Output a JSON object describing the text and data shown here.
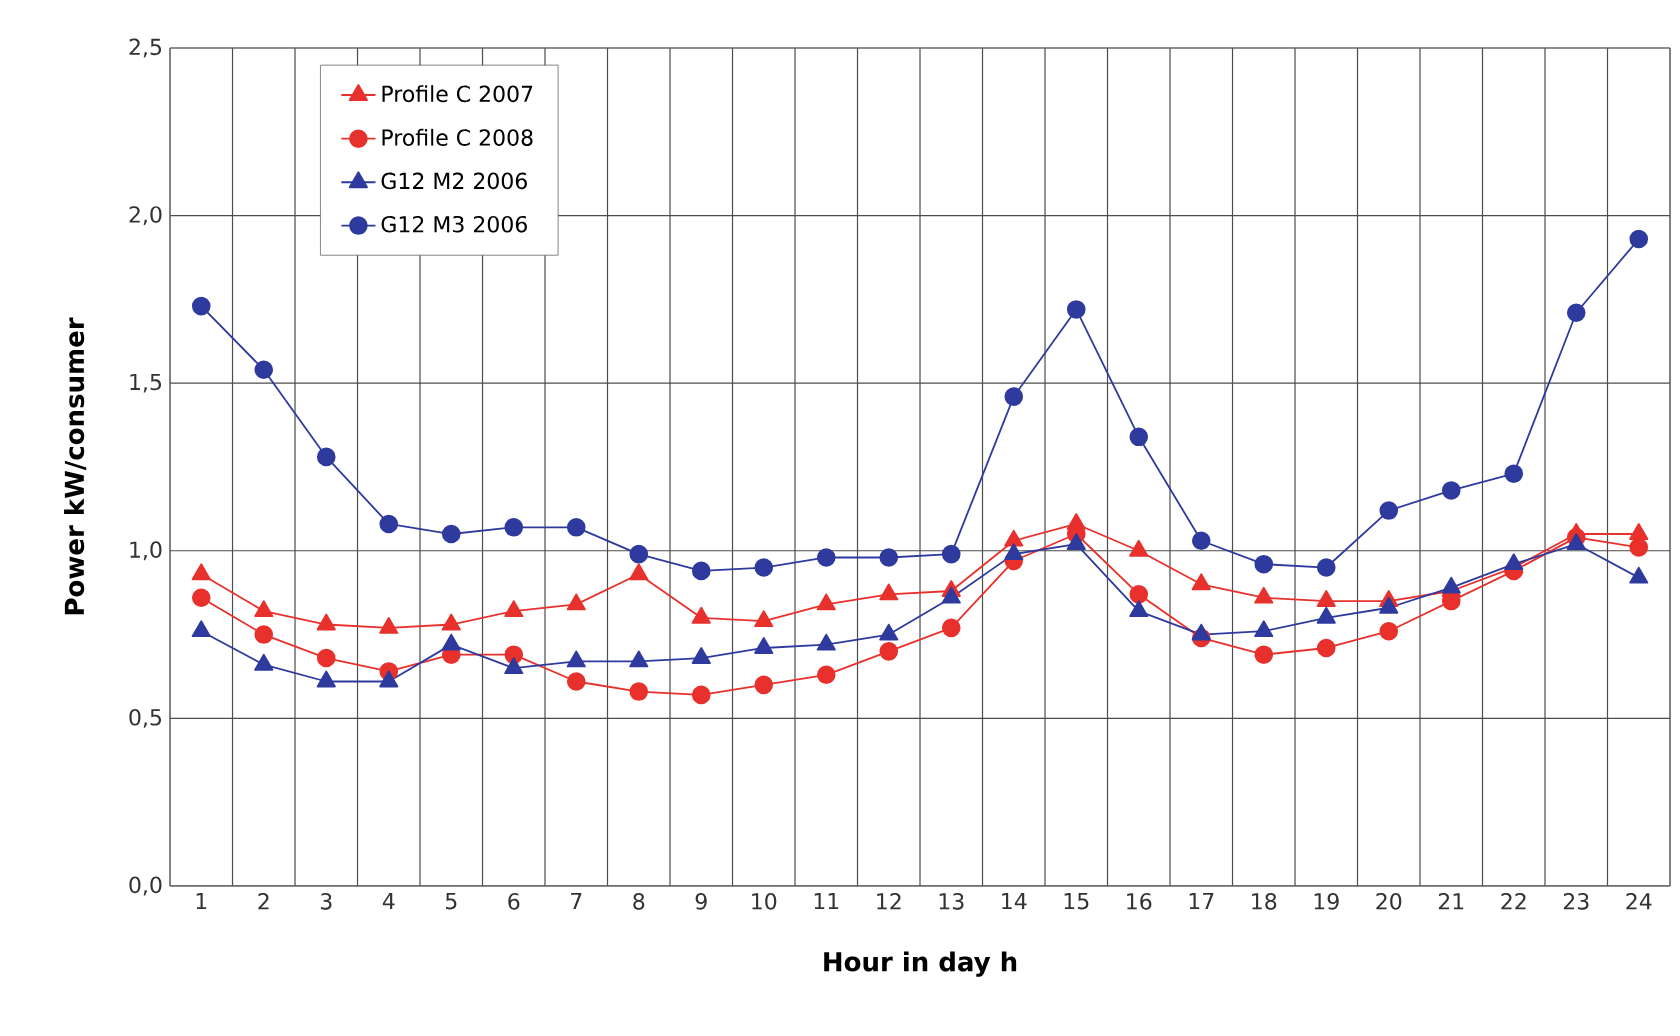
{
  "chart_data": {
    "type": "line",
    "xlabel": "Hour in day    h",
    "ylabel": "Power    kW/consumer",
    "x": [
      1,
      2,
      3,
      4,
      5,
      6,
      7,
      8,
      9,
      10,
      11,
      12,
      13,
      14,
      15,
      16,
      17,
      18,
      19,
      20,
      21,
      22,
      23,
      24
    ],
    "xlim": [
      0.5,
      24.5
    ],
    "xticks": [
      1,
      2,
      3,
      4,
      5,
      6,
      7,
      8,
      9,
      10,
      11,
      12,
      13,
      14,
      15,
      16,
      17,
      18,
      19,
      20,
      21,
      22,
      23,
      24
    ],
    "ylim": [
      0,
      2.5
    ],
    "yticks": [
      {
        "value": 0,
        "label": "0,0"
      },
      {
        "value": 0.5,
        "label": "0,5"
      },
      {
        "value": 1,
        "label": "1,0"
      },
      {
        "value": 1.5,
        "label": "1,5"
      },
      {
        "value": 2,
        "label": "2,0"
      },
      {
        "value": 2.5,
        "label": "2,5"
      }
    ],
    "grid": true,
    "legend": "top left",
    "line_style": "solid",
    "series": [
      {
        "name": "Profile C  2007",
        "color": "#e8312c",
        "marker": "triangle",
        "values": [
          0.93,
          0.82,
          0.78,
          0.77,
          0.78,
          0.82,
          0.84,
          0.93,
          0.8,
          0.79,
          0.84,
          0.87,
          0.88,
          1.03,
          1.08,
          1.0,
          0.9,
          0.86,
          0.85,
          0.85,
          0.88,
          0.95,
          1.05,
          1.05
        ]
      },
      {
        "name": "Profile C  2008",
        "color": "#e8312c",
        "marker": "circle",
        "values": [
          0.86,
          0.75,
          0.68,
          0.64,
          0.69,
          0.69,
          0.61,
          0.58,
          0.57,
          0.6,
          0.63,
          0.7,
          0.77,
          0.97,
          1.05,
          0.87,
          0.74,
          0.69,
          0.71,
          0.76,
          0.85,
          0.94,
          1.04,
          1.01
        ]
      },
      {
        "name": "G12 M2 2006",
        "color": "#2e3a9e",
        "marker": "triangle",
        "values": [
          0.76,
          0.66,
          0.61,
          0.61,
          0.72,
          0.65,
          0.67,
          0.67,
          0.68,
          0.71,
          0.72,
          0.75,
          0.86,
          0.99,
          1.02,
          0.82,
          0.75,
          0.76,
          0.8,
          0.83,
          0.89,
          0.96,
          1.02,
          0.92
        ]
      },
      {
        "name": "G12 M3 2006",
        "color": "#2e3a9e",
        "marker": "circle",
        "values": [
          1.73,
          1.54,
          1.28,
          1.08,
          1.05,
          1.07,
          1.07,
          0.99,
          0.94,
          0.95,
          0.98,
          0.98,
          0.99,
          1.46,
          1.72,
          1.34,
          1.03,
          0.96,
          0.95,
          1.12,
          1.18,
          1.23,
          1.71,
          1.93
        ]
      }
    ]
  }
}
